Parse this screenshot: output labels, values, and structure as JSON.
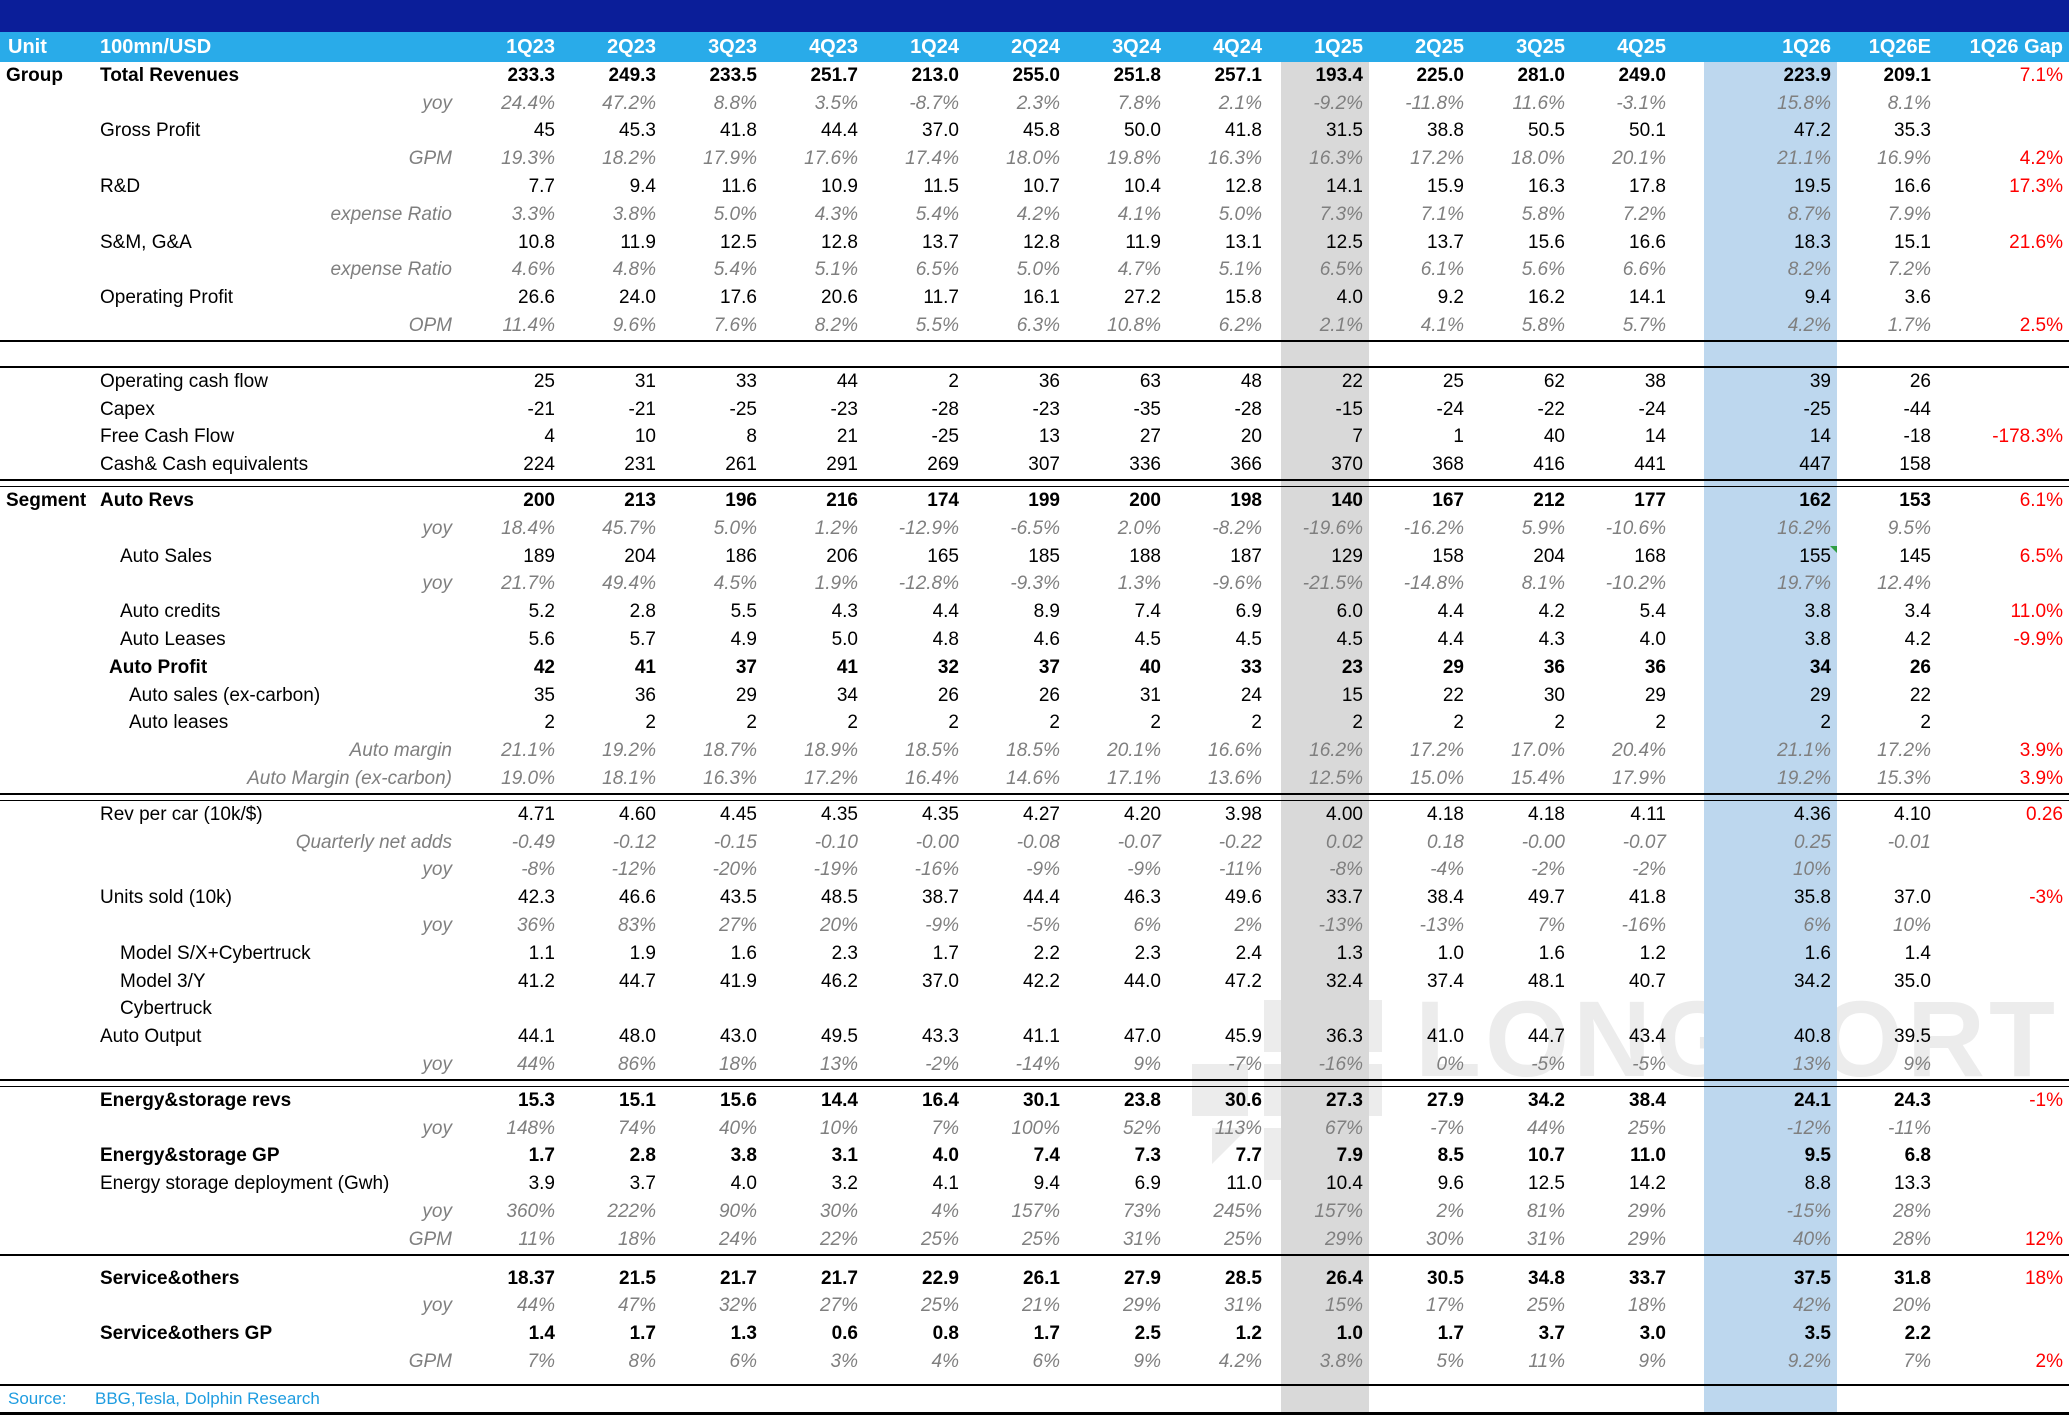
{
  "chart_data": {
    "type": "table",
    "title": "Tesla quarterly financials (Dolphin Research)",
    "unit_label": "Unit",
    "unit_value": "100mn/USD",
    "columns": [
      "1Q23",
      "2Q23",
      "3Q23",
      "4Q23",
      "1Q24",
      "2Q24",
      "3Q24",
      "4Q24",
      "1Q25",
      "2Q25",
      "3Q25",
      "4Q25",
      "1Q26",
      "1Q26E",
      "1Q26 Gap"
    ],
    "highlights": {
      "gray_column": "1Q25",
      "blue_column": "1Q26",
      "gray_hex": "#d9d9d9",
      "blue_hex": "#bdd7ee"
    },
    "colors": {
      "header_navy": "#0b1e99",
      "header_cyan": "#29abe9",
      "gap_red": "#ff0000",
      "sub_gray": "#7f7f7f",
      "source_cyan": "#1e9ce0",
      "comment_marker_green": "#2f9e44"
    },
    "rows": [
      {
        "section": "Group",
        "label": "Total Revenues",
        "style": "bold",
        "indent": 0,
        "values": [
          "233.3",
          "249.3",
          "233.5",
          "251.7",
          "213.0",
          "255.0",
          "251.8",
          "257.1",
          "193.4",
          "225.0",
          "281.0",
          "249.0",
          "223.9",
          "209.1",
          "7.1%"
        ]
      },
      {
        "label": "yoy",
        "style": "sub",
        "values": [
          "24.4%",
          "47.2%",
          "8.8%",
          "3.5%",
          "-8.7%",
          "2.3%",
          "7.8%",
          "2.1%",
          "-9.2%",
          "-11.8%",
          "11.6%",
          "-3.1%",
          "15.8%",
          "8.1%",
          ""
        ]
      },
      {
        "label": "Gross Profit",
        "style": "plain",
        "indent": 0,
        "values": [
          "45",
          "45.3",
          "41.8",
          "44.4",
          "37.0",
          "45.8",
          "50.0",
          "41.8",
          "31.5",
          "38.8",
          "50.5",
          "50.1",
          "47.2",
          "35.3",
          ""
        ]
      },
      {
        "label": "GPM",
        "style": "sub",
        "values": [
          "19.3%",
          "18.2%",
          "17.9%",
          "17.6%",
          "17.4%",
          "18.0%",
          "19.8%",
          "16.3%",
          "16.3%",
          "17.2%",
          "18.0%",
          "20.1%",
          "21.1%",
          "16.9%",
          "4.2%"
        ]
      },
      {
        "label": "R&D",
        "style": "plain",
        "indent": 0,
        "values": [
          "7.7",
          "9.4",
          "11.6",
          "10.9",
          "11.5",
          "10.7",
          "10.4",
          "12.8",
          "14.1",
          "15.9",
          "16.3",
          "17.8",
          "19.5",
          "16.6",
          "17.3%"
        ]
      },
      {
        "label": "expense Ratio",
        "style": "sub",
        "values": [
          "3.3%",
          "3.8%",
          "5.0%",
          "4.3%",
          "5.4%",
          "4.2%",
          "4.1%",
          "5.0%",
          "7.3%",
          "7.1%",
          "5.8%",
          "7.2%",
          "8.7%",
          "7.9%",
          ""
        ]
      },
      {
        "label": "S&M, G&A",
        "style": "plain",
        "indent": 0,
        "values": [
          "10.8",
          "11.9",
          "12.5",
          "12.8",
          "13.7",
          "12.8",
          "11.9",
          "13.1",
          "12.5",
          "13.7",
          "15.6",
          "16.6",
          "18.3",
          "15.1",
          "21.6%"
        ]
      },
      {
        "label": "expense Ratio",
        "style": "sub",
        "values": [
          "4.6%",
          "4.8%",
          "5.4%",
          "5.1%",
          "6.5%",
          "5.0%",
          "4.7%",
          "5.1%",
          "6.5%",
          "6.1%",
          "5.6%",
          "6.6%",
          "8.2%",
          "7.2%",
          ""
        ]
      },
      {
        "label": "Operating Profit",
        "style": "plain",
        "indent": 0,
        "values": [
          "26.6",
          "24.0",
          "17.6",
          "20.6",
          "11.7",
          "16.1",
          "27.2",
          "15.8",
          "4.0",
          "9.2",
          "16.2",
          "14.1",
          "9.4",
          "3.6",
          ""
        ]
      },
      {
        "label": "OPM",
        "style": "sub",
        "values": [
          "11.4%",
          "9.6%",
          "7.6%",
          "8.2%",
          "5.5%",
          "6.3%",
          "10.8%",
          "6.2%",
          "2.1%",
          "4.1%",
          "5.8%",
          "5.7%",
          "4.2%",
          "1.7%",
          "2.5%"
        ]
      },
      {
        "divider": "gap"
      },
      {
        "label": "Operating cash flow",
        "style": "plain",
        "indent": 0,
        "values": [
          "25",
          "31",
          "33",
          "44",
          "2",
          "36",
          "63",
          "48",
          "22",
          "25",
          "62",
          "38",
          "39",
          "26",
          ""
        ]
      },
      {
        "label": "Capex",
        "style": "plain",
        "indent": 0,
        "values": [
          "-21",
          "-21",
          "-25",
          "-23",
          "-28",
          "-23",
          "-35",
          "-28",
          "-15",
          "-24",
          "-22",
          "-24",
          "-25",
          "-44",
          ""
        ]
      },
      {
        "label": "Free Cash Flow",
        "style": "plain",
        "indent": 0,
        "values": [
          "4",
          "10",
          "8",
          "21",
          "-25",
          "13",
          "27",
          "20",
          "7",
          "1",
          "40",
          "14",
          "14",
          "-18",
          "-178.3%"
        ]
      },
      {
        "label": "Cash& Cash equivalents",
        "style": "plain",
        "indent": 0,
        "values": [
          "224",
          "231",
          "261",
          "291",
          "269",
          "307",
          "336",
          "366",
          "370",
          "368",
          "416",
          "441",
          "447",
          "158",
          ""
        ]
      },
      {
        "divider": "double"
      },
      {
        "section": "Segment",
        "label": "Auto Revs",
        "style": "bold",
        "indent": 0,
        "values": [
          "200",
          "213",
          "196",
          "216",
          "174",
          "199",
          "200",
          "198",
          "140",
          "167",
          "212",
          "177",
          "162",
          "153",
          "6.1%"
        ]
      },
      {
        "label": "yoy",
        "style": "sub",
        "values": [
          "18.4%",
          "45.7%",
          "5.0%",
          "1.2%",
          "-12.9%",
          "-6.5%",
          "2.0%",
          "-8.2%",
          "-19.6%",
          "-16.2%",
          "5.9%",
          "-10.6%",
          "16.2%",
          "9.5%",
          ""
        ]
      },
      {
        "label": "Auto Sales",
        "style": "plain",
        "indent": 2,
        "marker_col": 12,
        "values": [
          "189",
          "204",
          "186",
          "206",
          "165",
          "185",
          "188",
          "187",
          "129",
          "158",
          "204",
          "168",
          "155",
          "145",
          "6.5%"
        ]
      },
      {
        "label": "yoy",
        "style": "sub",
        "values": [
          "21.7%",
          "49.4%",
          "4.5%",
          "1.9%",
          "-12.8%",
          "-9.3%",
          "1.3%",
          "-9.6%",
          "-21.5%",
          "-14.8%",
          "8.1%",
          "-10.2%",
          "19.7%",
          "12.4%",
          ""
        ]
      },
      {
        "label": "Auto credits",
        "style": "plain",
        "indent": 2,
        "values": [
          "5.2",
          "2.8",
          "5.5",
          "4.3",
          "4.4",
          "8.9",
          "7.4",
          "6.9",
          "6.0",
          "4.4",
          "4.2",
          "5.4",
          "3.8",
          "3.4",
          "11.0%"
        ]
      },
      {
        "label": "Auto Leases",
        "style": "plain",
        "indent": 2,
        "values": [
          "5.6",
          "5.7",
          "4.9",
          "5.0",
          "4.8",
          "4.6",
          "4.5",
          "4.5",
          "4.5",
          "4.4",
          "4.3",
          "4.0",
          "3.8",
          "4.2",
          "-9.9%"
        ]
      },
      {
        "label": "Auto Profit",
        "style": "bold",
        "indent": 1,
        "values": [
          "42",
          "41",
          "37",
          "41",
          "32",
          "37",
          "40",
          "33",
          "23",
          "29",
          "36",
          "36",
          "34",
          "26",
          ""
        ]
      },
      {
        "label": "Auto sales (ex-carbon)",
        "style": "plain",
        "indent": 3,
        "values": [
          "35",
          "36",
          "29",
          "34",
          "26",
          "26",
          "31",
          "24",
          "15",
          "22",
          "30",
          "29",
          "29",
          "22",
          ""
        ]
      },
      {
        "label": "Auto leases",
        "style": "plain",
        "indent": 3,
        "values": [
          "2",
          "2",
          "2",
          "2",
          "2",
          "2",
          "2",
          "2",
          "2",
          "2",
          "2",
          "2",
          "2",
          "2",
          ""
        ]
      },
      {
        "label": "Auto margin",
        "style": "sub",
        "values": [
          "21.1%",
          "19.2%",
          "18.7%",
          "18.9%",
          "18.5%",
          "18.5%",
          "20.1%",
          "16.6%",
          "16.2%",
          "17.2%",
          "17.0%",
          "20.4%",
          "21.1%",
          "17.2%",
          "3.9%"
        ]
      },
      {
        "label": "Auto Margin  (ex-carbon)",
        "style": "sub",
        "values": [
          "19.0%",
          "18.1%",
          "16.3%",
          "17.2%",
          "16.4%",
          "14.6%",
          "17.1%",
          "13.6%",
          "12.5%",
          "15.0%",
          "15.4%",
          "17.9%",
          "19.2%",
          "15.3%",
          "3.9%"
        ]
      },
      {
        "divider": "double"
      },
      {
        "label": "Rev per car  (10k/$)",
        "style": "plain",
        "indent": 0,
        "values": [
          "4.71",
          "4.60",
          "4.45",
          "4.35",
          "4.35",
          "4.27",
          "4.20",
          "3.98",
          "4.00",
          "4.18",
          "4.18",
          "4.11",
          "4.36",
          "4.10",
          "0.26"
        ]
      },
      {
        "label": "Quarterly  net adds",
        "style": "sub",
        "values": [
          "-0.49",
          "-0.12",
          "-0.15",
          "-0.10",
          "-0.00",
          "-0.08",
          "-0.07",
          "-0.22",
          "0.02",
          "0.18",
          "-0.00",
          "-0.07",
          "0.25",
          "-0.01",
          ""
        ]
      },
      {
        "label": "yoy",
        "style": "sub",
        "values": [
          "-8%",
          "-12%",
          "-20%",
          "-19%",
          "-16%",
          "-9%",
          "-9%",
          "-11%",
          "-8%",
          "-4%",
          "-2%",
          "-2%",
          "10%",
          "",
          ""
        ]
      },
      {
        "label": "Units sold  (10k)",
        "style": "plain",
        "indent": 0,
        "values": [
          "42.3",
          "46.6",
          "43.5",
          "48.5",
          "38.7",
          "44.4",
          "46.3",
          "49.6",
          "33.7",
          "38.4",
          "49.7",
          "41.8",
          "35.8",
          "37.0",
          "-3%"
        ]
      },
      {
        "label": "yoy",
        "style": "sub",
        "values": [
          "36%",
          "83%",
          "27%",
          "20%",
          "-9%",
          "-5%",
          "6%",
          "2%",
          "-13%",
          "-13%",
          "7%",
          "-16%",
          "6%",
          "10%",
          ""
        ]
      },
      {
        "label": "Model S/X+Cybertruck",
        "style": "plain",
        "indent": 2,
        "values": [
          "1.1",
          "1.9",
          "1.6",
          "2.3",
          "1.7",
          "2.2",
          "2.3",
          "2.4",
          "1.3",
          "1.0",
          "1.6",
          "1.2",
          "1.6",
          "1.4",
          ""
        ]
      },
      {
        "label": "Model 3/Y",
        "style": "plain",
        "indent": 2,
        "values": [
          "41.2",
          "44.7",
          "41.9",
          "46.2",
          "37.0",
          "42.2",
          "44.0",
          "47.2",
          "32.4",
          "37.4",
          "48.1",
          "40.7",
          "34.2",
          "35.0",
          ""
        ]
      },
      {
        "label": "Cybertruck",
        "style": "plain",
        "indent": 2,
        "values": [
          "",
          "",
          "",
          "",
          "",
          "",
          "",
          "",
          "",
          "",
          "",
          "",
          "",
          "",
          ""
        ]
      },
      {
        "label": "Auto Output",
        "style": "plain",
        "indent": 0,
        "values": [
          "44.1",
          "48.0",
          "43.0",
          "49.5",
          "43.3",
          "41.1",
          "47.0",
          "45.9",
          "36.3",
          "41.0",
          "44.7",
          "43.4",
          "40.8",
          "39.5",
          ""
        ]
      },
      {
        "label": "yoy",
        "style": "sub",
        "values": [
          "44%",
          "86%",
          "18%",
          "13%",
          "-2%",
          "-14%",
          "9%",
          "-7%",
          "-16%",
          "0%",
          "-5%",
          "-5%",
          "13%",
          "9%",
          ""
        ]
      },
      {
        "divider": "double"
      },
      {
        "label": "Energy&storage revs",
        "style": "bold",
        "indent": 0,
        "values": [
          "15.3",
          "15.1",
          "15.6",
          "14.4",
          "16.4",
          "30.1",
          "23.8",
          "30.6",
          "27.3",
          "27.9",
          "34.2",
          "38.4",
          "24.1",
          "24.3",
          "-1%"
        ]
      },
      {
        "label": "yoy",
        "style": "sub",
        "values": [
          "148%",
          "74%",
          "40%",
          "10%",
          "7%",
          "100%",
          "52%",
          "113%",
          "67%",
          "-7%",
          "44%",
          "25%",
          "-12%",
          "-11%",
          ""
        ]
      },
      {
        "label": "Energy&storage GP",
        "style": "bold",
        "indent": 0,
        "values": [
          "1.7",
          "2.8",
          "3.8",
          "3.1",
          "4.0",
          "7.4",
          "7.3",
          "7.7",
          "7.9",
          "8.5",
          "10.7",
          "11.0",
          "9.5",
          "6.8",
          ""
        ]
      },
      {
        "label": "Energy storage deployment (Gwh)",
        "style": "plain",
        "indent": 0,
        "values": [
          "3.9",
          "3.7",
          "4.0",
          "3.2",
          "4.1",
          "9.4",
          "6.9",
          "11.0",
          "10.4",
          "9.6",
          "12.5",
          "14.2",
          "8.8",
          "13.3",
          ""
        ]
      },
      {
        "label": "yoy",
        "style": "sub",
        "values": [
          "360%",
          "222%",
          "90%",
          "30%",
          "4%",
          "157%",
          "73%",
          "245%",
          "157%",
          "2%",
          "81%",
          "29%",
          "-15%",
          "28%",
          ""
        ]
      },
      {
        "label": "GPM",
        "style": "sub",
        "values": [
          "11%",
          "18%",
          "24%",
          "22%",
          "25%",
          "25%",
          "31%",
          "25%",
          "29%",
          "30%",
          "31%",
          "29%",
          "40%",
          "28%",
          "12%"
        ]
      },
      {
        "divider": "single"
      },
      {
        "label": "Service&others",
        "style": "bold",
        "indent": 0,
        "values": [
          "18.37",
          "21.5",
          "21.7",
          "21.7",
          "22.9",
          "26.1",
          "27.9",
          "28.5",
          "26.4",
          "30.5",
          "34.8",
          "33.7",
          "37.5",
          "31.8",
          "18%"
        ]
      },
      {
        "label": "yoy",
        "style": "sub",
        "values": [
          "44%",
          "47%",
          "32%",
          "27%",
          "25%",
          "21%",
          "29%",
          "31%",
          "15%",
          "17%",
          "25%",
          "18%",
          "42%",
          "20%",
          ""
        ]
      },
      {
        "label": "Service&others GP",
        "style": "bold",
        "indent": 0,
        "values": [
          "1.4",
          "1.7",
          "1.3",
          "0.6",
          "0.8",
          "1.7",
          "2.5",
          "1.2",
          "1.0",
          "1.7",
          "3.7",
          "3.0",
          "3.5",
          "2.2",
          ""
        ]
      },
      {
        "label": "GPM",
        "style": "sub",
        "values": [
          "7%",
          "8%",
          "6%",
          "3%",
          "4%",
          "6%",
          "9%",
          "4.2%",
          "3.8%",
          "5%",
          "11%",
          "9%",
          "9.2%",
          "7%",
          "2%"
        ]
      }
    ],
    "source": {
      "label": "Source:",
      "text": "BBG,Tesla,  Dolphin Research"
    },
    "watermark": "LONGPORT"
  }
}
